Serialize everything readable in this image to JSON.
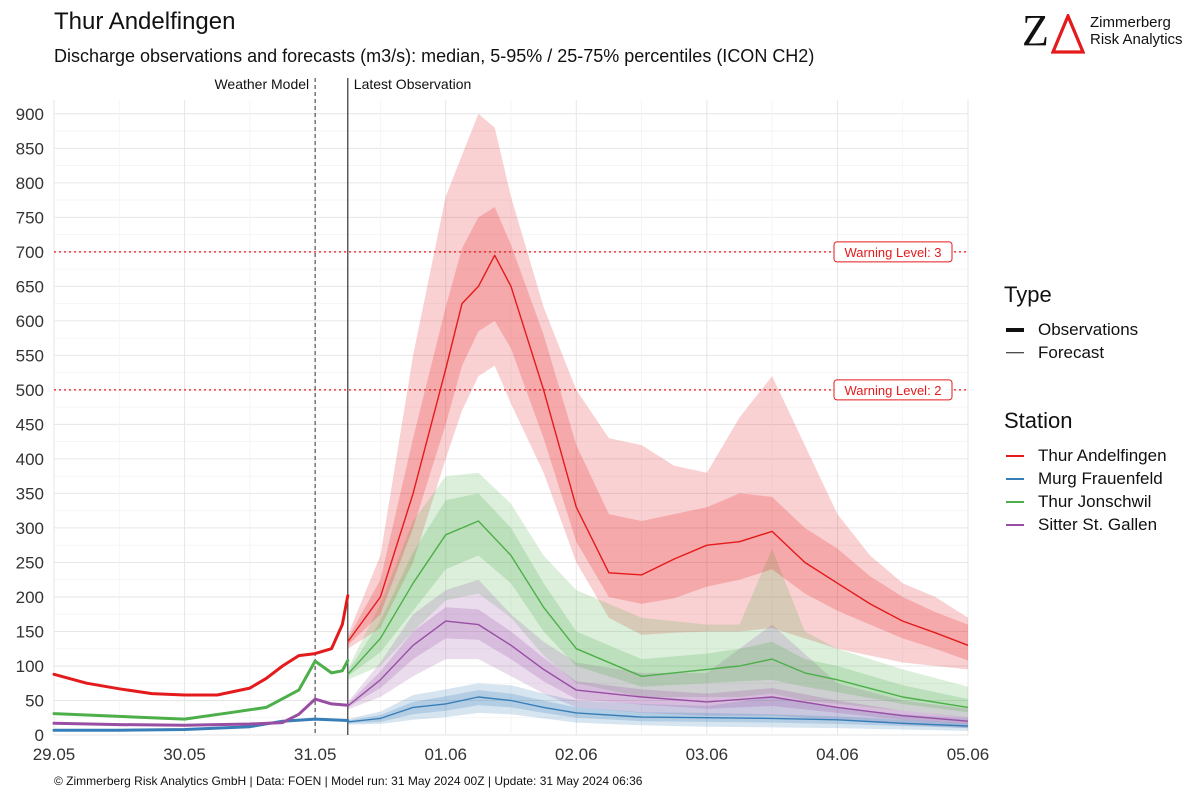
{
  "header": {
    "title": "Thur Andelfingen",
    "subtitle": "Discharge observations and forecasts (m3/s): median, 5-95% / 25-75% percentiles (ICON CH2)"
  },
  "logo": {
    "mark_letters": "ZΔ",
    "line1": "Zimmerberg",
    "line2": "Risk Analytics",
    "accent_color": "#e41a1c"
  },
  "footer": {
    "text": "© Zimmerberg Risk Analytics GmbH | Data: FOEN | Model run: 31 May 2024 00Z | Update: 31 May 2024 06:36"
  },
  "legend": {
    "type_title": "Type",
    "type_items": [
      {
        "label": "Observations",
        "style": "thick"
      },
      {
        "label": "Forecast",
        "style": "thin"
      }
    ],
    "station_title": "Station",
    "station_items": [
      {
        "label": "Thur Andelfingen",
        "color": "#e41a1c"
      },
      {
        "label": "Murg Frauenfeld",
        "color": "#377eb8"
      },
      {
        "label": "Thur Jonschwil",
        "color": "#4daf4a"
      },
      {
        "label": "Sitter St. Gallen",
        "color": "#984ea3"
      }
    ]
  },
  "chart_data": {
    "type": "line",
    "x_unit": "days (date axis)",
    "xlim": [
      "2024-05-29 00:00",
      "2024-06-05 00:00"
    ],
    "ylim": [
      0,
      920
    ],
    "y_ticks": [
      0,
      50,
      100,
      150,
      200,
      250,
      300,
      350,
      400,
      450,
      500,
      550,
      600,
      650,
      700,
      750,
      800,
      850,
      900
    ],
    "x_ticks": [
      {
        "label": "29.05",
        "t": "2024-05-29 00:00"
      },
      {
        "label": "30.05",
        "t": "2024-05-30 00:00"
      },
      {
        "label": "31.05",
        "t": "2024-05-31 00:00"
      },
      {
        "label": "01.06",
        "t": "2024-06-01 00:00"
      },
      {
        "label": "02.06",
        "t": "2024-06-02 00:00"
      },
      {
        "label": "03.06",
        "t": "2024-06-03 00:00"
      },
      {
        "label": "04.06",
        "t": "2024-06-04 00:00"
      },
      {
        "label": "05.06",
        "t": "2024-06-05 00:00"
      }
    ],
    "grid": true,
    "legend_position": "right",
    "vlines": [
      {
        "label": "Weather Model",
        "t": "2024-05-31 00:00",
        "style": "dashed"
      },
      {
        "label": "Latest Observation",
        "t": "2024-05-31 06:00",
        "style": "solid"
      }
    ],
    "hlines": [
      {
        "label": "Warning Level: 3",
        "y": 700,
        "color": "#e41a1c"
      },
      {
        "label": "Warning Level: 2",
        "y": 500,
        "color": "#e41a1c"
      }
    ],
    "series": [
      {
        "name": "Thur Andelfingen",
        "color": "#e41a1c",
        "observations": {
          "t": [
            "2024-05-29 00:00",
            "2024-05-29 06:00",
            "2024-05-29 12:00",
            "2024-05-29 18:00",
            "2024-05-30 00:00",
            "2024-05-30 06:00",
            "2024-05-30 12:00",
            "2024-05-30 15:00",
            "2024-05-30 18:00",
            "2024-05-30 21:00",
            "2024-05-31 00:00",
            "2024-05-31 03:00",
            "2024-05-31 05:00",
            "2024-05-31 06:00"
          ],
          "y": [
            88,
            75,
            67,
            60,
            58,
            58,
            68,
            82,
            100,
            115,
            118,
            125,
            160,
            202
          ]
        },
        "forecast": {
          "t": [
            "2024-05-31 06:00",
            "2024-05-31 12:00",
            "2024-05-31 18:00",
            "2024-06-01 00:00",
            "2024-06-01 03:00",
            "2024-06-01 06:00",
            "2024-06-01 09:00",
            "2024-06-01 12:00",
            "2024-06-01 18:00",
            "2024-06-02 00:00",
            "2024-06-02 06:00",
            "2024-06-02 12:00",
            "2024-06-02 18:00",
            "2024-06-03 00:00",
            "2024-06-03 06:00",
            "2024-06-03 12:00",
            "2024-06-03 18:00",
            "2024-06-04 00:00",
            "2024-06-04 06:00",
            "2024-06-04 12:00",
            "2024-06-04 18:00",
            "2024-06-05 00:00"
          ],
          "median": [
            135,
            200,
            350,
            530,
            625,
            650,
            695,
            650,
            500,
            330,
            235,
            232,
            255,
            275,
            280,
            295,
            250,
            220,
            190,
            165,
            148,
            130
          ],
          "p25": [
            130,
            175,
            300,
            450,
            535,
            585,
            600,
            560,
            430,
            280,
            200,
            190,
            198,
            215,
            225,
            240,
            205,
            180,
            160,
            140,
            125,
            108
          ],
          "p75": [
            140,
            225,
            430,
            620,
            705,
            750,
            765,
            710,
            580,
            420,
            320,
            310,
            320,
            330,
            350,
            345,
            300,
            270,
            230,
            200,
            178,
            160
          ],
          "p5": [
            125,
            155,
            250,
            400,
            470,
            520,
            535,
            480,
            380,
            250,
            170,
            145,
            148,
            150,
            150,
            155,
            140,
            125,
            115,
            105,
            100,
            95
          ],
          "p95": [
            145,
            260,
            550,
            780,
            840,
            900,
            880,
            780,
            620,
            500,
            430,
            420,
            390,
            380,
            460,
            520,
            420,
            320,
            260,
            220,
            200,
            170
          ]
        }
      },
      {
        "name": "Murg Frauenfeld",
        "color": "#377eb8",
        "observations": {
          "t": [
            "2024-05-29 00:00",
            "2024-05-29 12:00",
            "2024-05-30 00:00",
            "2024-05-30 12:00",
            "2024-05-30 18:00",
            "2024-05-31 00:00",
            "2024-05-31 06:00"
          ],
          "y": [
            7,
            7,
            8,
            12,
            20,
            23,
            21
          ]
        },
        "forecast": {
          "t": [
            "2024-05-31 06:00",
            "2024-05-31 12:00",
            "2024-05-31 18:00",
            "2024-06-01 00:00",
            "2024-06-01 06:00",
            "2024-06-01 12:00",
            "2024-06-01 18:00",
            "2024-06-02 00:00",
            "2024-06-02 12:00",
            "2024-06-03 00:00",
            "2024-06-03 12:00",
            "2024-06-04 00:00",
            "2024-06-04 12:00",
            "2024-06-05 00:00"
          ],
          "median": [
            19,
            24,
            40,
            45,
            55,
            50,
            40,
            32,
            26,
            25,
            24,
            22,
            17,
            13
          ],
          "p25": [
            17,
            19,
            30,
            35,
            43,
            40,
            32,
            25,
            20,
            19,
            18,
            16,
            13,
            10
          ],
          "p75": [
            21,
            29,
            48,
            56,
            65,
            60,
            50,
            40,
            33,
            32,
            30,
            27,
            22,
            17
          ],
          "p5": [
            15,
            16,
            22,
            26,
            32,
            30,
            24,
            18,
            14,
            12,
            11,
            10,
            8,
            6
          ],
          "p95": [
            23,
            34,
            58,
            66,
            75,
            72,
            60,
            50,
            45,
            42,
            55,
            40,
            30,
            24
          ]
        }
      },
      {
        "name": "Thur Jonschwil",
        "color": "#4daf4a",
        "observations": {
          "t": [
            "2024-05-29 00:00",
            "2024-05-29 12:00",
            "2024-05-30 00:00",
            "2024-05-30 09:00",
            "2024-05-30 15:00",
            "2024-05-30 21:00",
            "2024-05-31 00:00",
            "2024-05-31 03:00",
            "2024-05-31 05:00",
            "2024-05-31 06:00"
          ],
          "y": [
            31,
            27,
            23,
            33,
            40,
            65,
            107,
            90,
            93,
            108
          ]
        },
        "forecast": {
          "t": [
            "2024-05-31 06:00",
            "2024-05-31 12:00",
            "2024-05-31 18:00",
            "2024-06-01 00:00",
            "2024-06-01 06:00",
            "2024-06-01 12:00",
            "2024-06-01 18:00",
            "2024-06-02 00:00",
            "2024-06-02 12:00",
            "2024-06-03 00:00",
            "2024-06-03 06:00",
            "2024-06-03 12:00",
            "2024-06-03 18:00",
            "2024-06-04 00:00",
            "2024-06-04 12:00",
            "2024-06-05 00:00"
          ],
          "median": [
            88,
            140,
            220,
            290,
            310,
            260,
            185,
            125,
            85,
            95,
            100,
            110,
            90,
            80,
            55,
            40
          ],
          "p25": [
            85,
            120,
            180,
            240,
            260,
            220,
            150,
            100,
            70,
            75,
            78,
            80,
            70,
            62,
            45,
            33
          ],
          "p75": [
            92,
            165,
            265,
            340,
            350,
            300,
            220,
            150,
            110,
            118,
            125,
            135,
            110,
            100,
            72,
            52
          ],
          "p5": [
            80,
            100,
            150,
            195,
            205,
            170,
            115,
            75,
            55,
            55,
            55,
            60,
            50,
            45,
            35,
            25
          ],
          "p95": [
            96,
            190,
            310,
            375,
            380,
            335,
            260,
            210,
            170,
            160,
            160,
            270,
            150,
            125,
            95,
            70
          ]
        }
      },
      {
        "name": "Sitter St. Gallen",
        "color": "#984ea3",
        "observations": {
          "t": [
            "2024-05-29 00:00",
            "2024-05-29 12:00",
            "2024-05-30 00:00",
            "2024-05-30 12:00",
            "2024-05-30 18:00",
            "2024-05-30 21:00",
            "2024-05-31 00:00",
            "2024-05-31 03:00",
            "2024-05-31 06:00"
          ],
          "y": [
            17,
            15,
            14,
            16,
            18,
            30,
            52,
            45,
            43
          ]
        },
        "forecast": {
          "t": [
            "2024-05-31 06:00",
            "2024-05-31 12:00",
            "2024-05-31 18:00",
            "2024-06-01 00:00",
            "2024-06-01 06:00",
            "2024-06-01 12:00",
            "2024-06-01 18:00",
            "2024-06-02 00:00",
            "2024-06-02 12:00",
            "2024-06-03 00:00",
            "2024-06-03 12:00",
            "2024-06-04 00:00",
            "2024-06-04 12:00",
            "2024-06-05 00:00"
          ],
          "median": [
            42,
            80,
            130,
            165,
            160,
            130,
            95,
            65,
            55,
            48,
            55,
            40,
            28,
            20
          ],
          "p25": [
            40,
            68,
            110,
            140,
            138,
            110,
            78,
            52,
            44,
            38,
            42,
            32,
            22,
            16
          ],
          "p75": [
            45,
            92,
            150,
            185,
            182,
            150,
            112,
            78,
            66,
            60,
            68,
            50,
            35,
            26
          ],
          "p5": [
            37,
            55,
            85,
            110,
            110,
            85,
            60,
            40,
            32,
            28,
            28,
            22,
            15,
            10
          ],
          "p95": [
            48,
            105,
            175,
            210,
            225,
            175,
            135,
            105,
            90,
            90,
            160,
            75,
            50,
            38
          ]
        }
      }
    ]
  }
}
